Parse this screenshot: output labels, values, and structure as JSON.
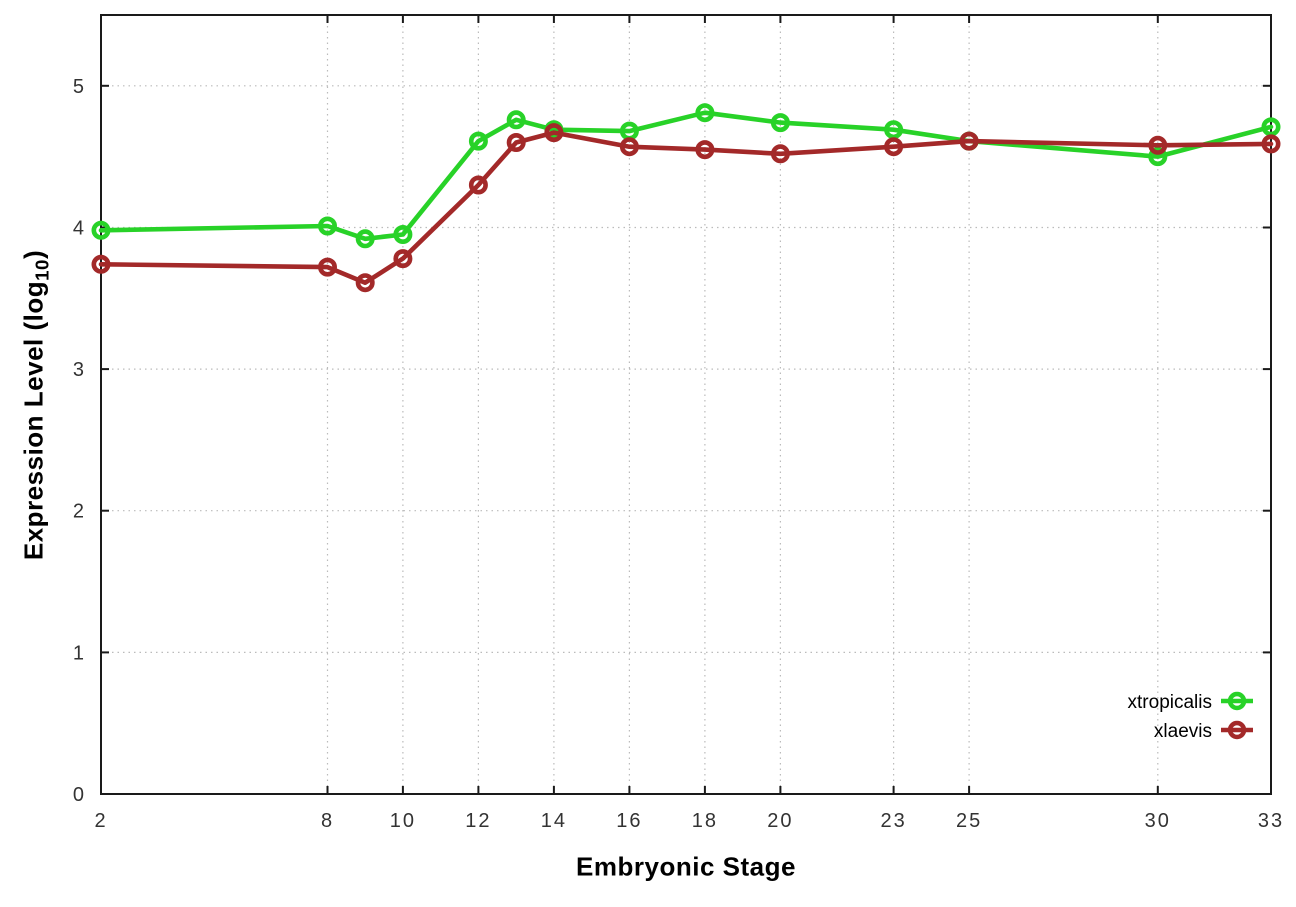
{
  "chart_data": {
    "type": "line",
    "title": "",
    "xlabel": "Embryonic Stage",
    "ylabel": "Expression Level (log10)",
    "ylabel_parts": {
      "pre": "Expression Level (log",
      "sub": "10",
      "post": ")"
    },
    "xlim": [
      2,
      33
    ],
    "ylim": [
      0,
      5.5
    ],
    "x_ticks": [
      2,
      8,
      10,
      12,
      14,
      16,
      18,
      20,
      23,
      25,
      30,
      33
    ],
    "y_ticks": [
      0,
      1,
      2,
      3,
      4,
      5
    ],
    "grid": true,
    "legend_position": "bottom-right",
    "x": [
      2,
      8,
      9,
      10,
      12,
      13,
      14,
      16,
      18,
      20,
      23,
      25,
      30,
      33
    ],
    "series": [
      {
        "name": "xtropicalis",
        "color": "#28d228",
        "marker": "open-circle",
        "values": [
          3.98,
          4.01,
          3.92,
          3.95,
          4.61,
          4.76,
          4.69,
          4.68,
          4.81,
          4.74,
          4.69,
          4.61,
          4.5,
          4.71
        ]
      },
      {
        "name": "xlaevis",
        "color": "#a32929",
        "marker": "open-circle",
        "values": [
          3.74,
          3.72,
          3.61,
          3.78,
          4.3,
          4.6,
          4.67,
          4.57,
          4.55,
          4.52,
          4.57,
          4.61,
          4.58,
          4.59
        ]
      }
    ],
    "colors": {
      "grid": "#bbbbbb",
      "axis": "#1a1a1a",
      "tick_text": "#333333",
      "legend_text": "#000000"
    }
  }
}
